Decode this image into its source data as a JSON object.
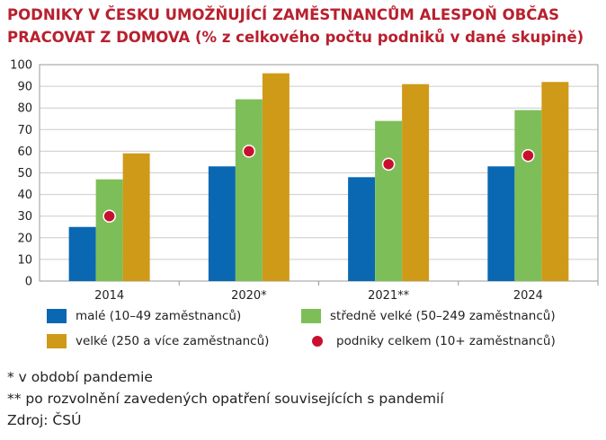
{
  "title_line1": "PODNIKY V ČESKU UMOŽŇUJÍCÍ ZAMĚSTNANCŮM ALESPOŇ OBČAS",
  "title_line2_bold": "PRACOVAT Z DOMOVA",
  "title_line2_rest": " (% z celkového počtu podniků v dané skupině)",
  "colors": {
    "male": "#0a67b1",
    "stredne": "#7dbe59",
    "velke": "#cf9a17",
    "celkem": "#c8102e",
    "grid": "#cccccc",
    "title": "#b8202e"
  },
  "chart_data": {
    "type": "bar",
    "categories": [
      "2014",
      "2020*",
      "2021**",
      "2024"
    ],
    "series": [
      {
        "name": "malé (10–49 zaměstnanců)",
        "values": [
          25,
          53,
          48,
          53
        ]
      },
      {
        "name": "středně velké (50–249 zaměstnanců)",
        "values": [
          47,
          84,
          74,
          79
        ]
      },
      {
        "name": "velké (250 a více zaměstnanců)",
        "values": [
          59,
          96,
          91,
          92
        ]
      }
    ],
    "overlay_points": {
      "name": "podniky celkem (10+ zaměstnanců)",
      "values": [
        30,
        60,
        54,
        58
      ]
    },
    "y_ticks": [
      "0",
      "10",
      "20",
      "30",
      "40",
      "50",
      "60",
      "70",
      "80",
      "90",
      "100"
    ],
    "ylim": [
      0,
      100
    ],
    "grid": true,
    "legend": "bottom"
  },
  "notes": [
    "* v období pandemie",
    "** po rozvolnění zavedených opatření souvisejících s pandemií",
    "Zdroj: ČSÚ"
  ]
}
